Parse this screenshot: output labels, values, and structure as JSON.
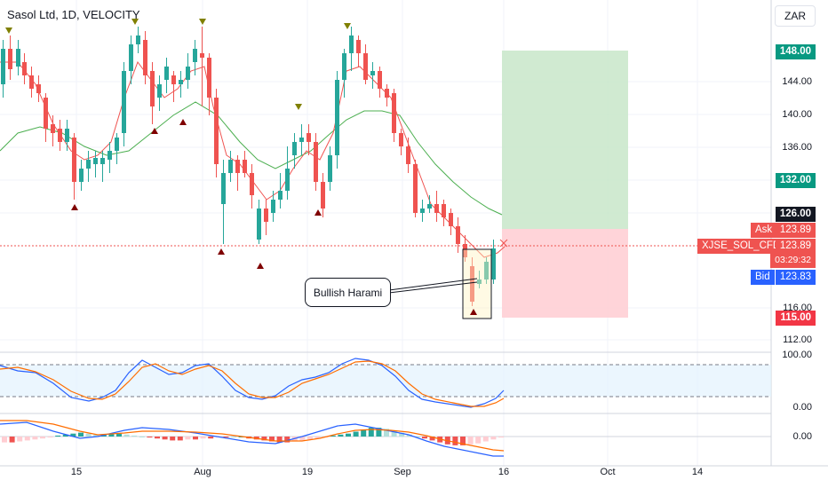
{
  "header": {
    "title": "Sasol Ltd, 1D, VELOCITY",
    "currency": "ZAR"
  },
  "annotation": {
    "label": "Bullish Harami"
  },
  "price_axis": {
    "ticks": [
      "144.00",
      "140.00",
      "136.00",
      "116.00",
      "112.00"
    ]
  },
  "price_badges": {
    "target": "148.00",
    "level_132": "132.00",
    "level_126": "126.00",
    "stop": "115.00",
    "ask_label": "Ask",
    "ask_value": "123.89",
    "symbol": "XJSE_SOL_CFD",
    "last_value": "123.89",
    "countdown": "03:29:32",
    "bid_label": "Bid",
    "bid_value": "123.83"
  },
  "stoch_axis": {
    "ticks": [
      "100.00",
      "0.00"
    ]
  },
  "macd_axis": {
    "ticks": [
      "0.00"
    ]
  },
  "time_axis": {
    "ticks": [
      "15",
      "Aug",
      "19",
      "Sep",
      "16",
      "Oct",
      "14"
    ]
  },
  "colors": {
    "up": "#26a69a",
    "down": "#ef5350",
    "ema": "#ef5350",
    "sma": "#4caf50",
    "target_zone": "#c8e6c9",
    "stop_zone": "#ffcdd2",
    "stoch_k": "#2962ff",
    "stoch_d": "#ff6d00",
    "badge_green": "#089981",
    "badge_red": "#f23645",
    "badge_dark": "#131722",
    "badge_blue": "#2962ff"
  },
  "icons": {
    "peak_marker": "triangle-down-icon",
    "trough_marker": "triangle-up-icon"
  }
}
